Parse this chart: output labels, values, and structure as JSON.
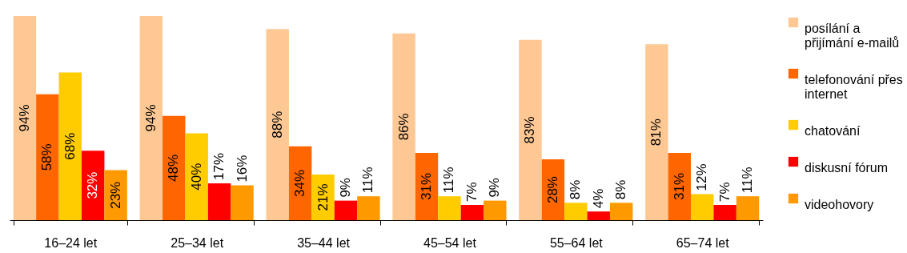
{
  "chart_data": {
    "type": "bar",
    "categories": [
      "16–24 let",
      "25–34 let",
      "35–44 let",
      "45–54 let",
      "55–64 let",
      "65–74 let"
    ],
    "series": [
      {
        "name": "posílání a přijímání e-mailů",
        "color": "#fdc893",
        "values": [
          94,
          94,
          88,
          86,
          83,
          81
        ],
        "value_labels": [
          "94%",
          "94%",
          "88%",
          "86%",
          "83%",
          "81%"
        ]
      },
      {
        "name": "telefonování přes internet",
        "color": "#ff6600",
        "values": [
          58,
          48,
          34,
          31,
          28,
          31
        ],
        "value_labels": [
          "58%",
          "48%",
          "34%",
          "31%",
          "28%",
          "31%"
        ]
      },
      {
        "name": "chatování",
        "color": "#ffcc00",
        "values": [
          68,
          40,
          21,
          11,
          8,
          12
        ],
        "value_labels": [
          "68%",
          "40%",
          "21%",
          "11%",
          "8%",
          "12%"
        ]
      },
      {
        "name": "diskusní fórum",
        "color": "#ff0000",
        "values": [
          32,
          17,
          9,
          7,
          4,
          7
        ],
        "value_labels": [
          "32%",
          "17%",
          "9%",
          "7%",
          "4%",
          "7%"
        ]
      },
      {
        "name": "videohovory",
        "color": "#ff9900",
        "values": [
          23,
          16,
          11,
          9,
          8,
          11
        ],
        "value_labels": [
          "23%",
          "16%",
          "11%",
          "9%",
          "8%",
          "11%"
        ]
      }
    ],
    "legend": "right",
    "grid": false
  }
}
